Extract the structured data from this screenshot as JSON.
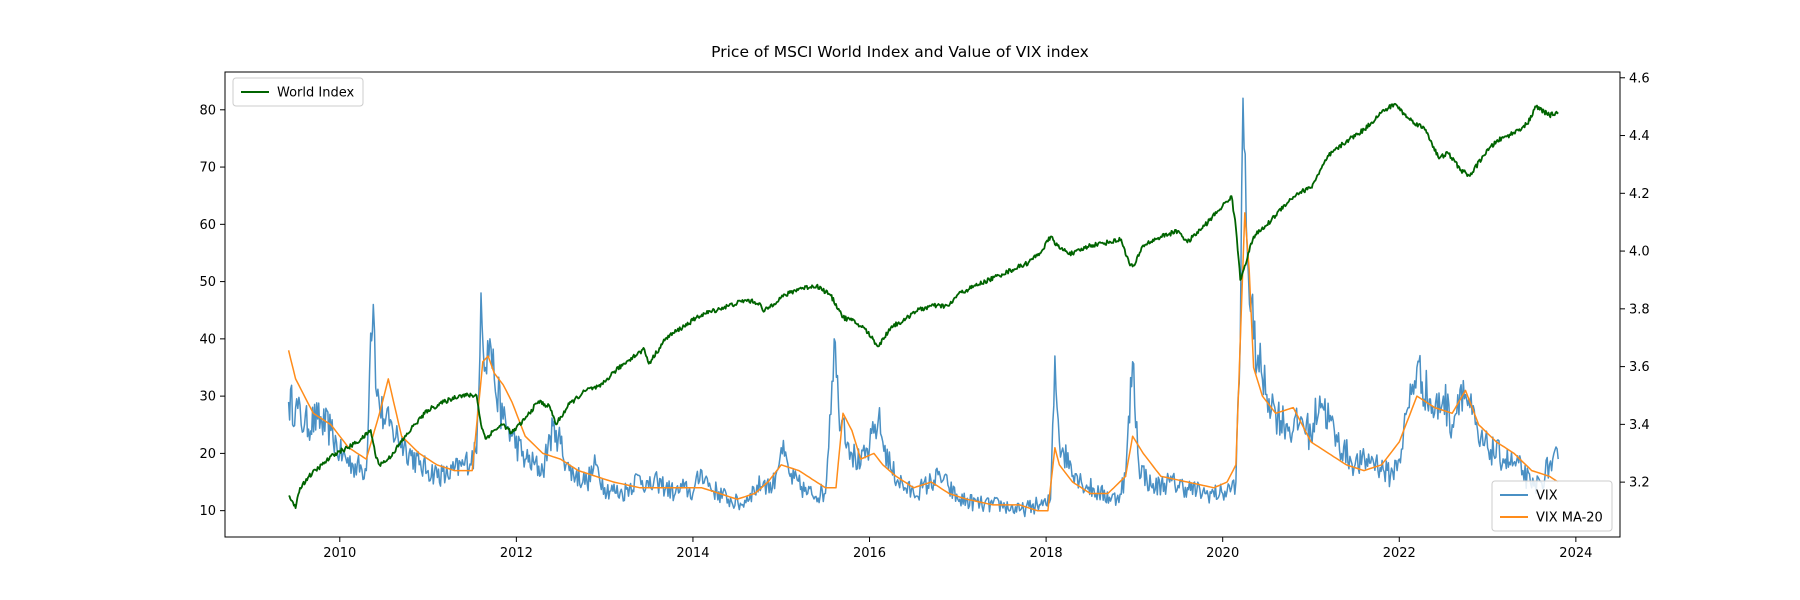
{
  "chart_data": {
    "type": "line",
    "title": "Price of MSCI World Index and Value of VIX index",
    "xlabel": "",
    "ylabel_left": "",
    "ylabel_right": "",
    "x_range": [
      2008.7,
      2024.5
    ],
    "x_ticks": [
      2010,
      2012,
      2014,
      2016,
      2018,
      2020,
      2022,
      2024
    ],
    "x_tick_labels": [
      "2010",
      "2012",
      "2014",
      "2016",
      "2018",
      "2020",
      "2022",
      "2024"
    ],
    "ylim_left": [
      5.4,
      86.6
    ],
    "y_ticks_left": [
      10,
      20,
      30,
      40,
      50,
      60,
      70,
      80
    ],
    "y_tick_labels_left": [
      "10",
      "20",
      "30",
      "40",
      "50",
      "60",
      "70",
      "80"
    ],
    "ylim_right": [
      3.01,
      4.62
    ],
    "y_ticks_right": [
      3.2,
      3.4,
      3.6,
      3.8,
      4.0,
      4.2,
      4.4,
      4.6
    ],
    "y_tick_labels_right": [
      "3.2",
      "3.4",
      "3.6",
      "3.8",
      "4.0",
      "4.2",
      "4.4",
      "4.6"
    ],
    "grid": false,
    "legends": [
      {
        "placement": "upper-left",
        "entries": [
          {
            "name": "World Index",
            "color": "#006400"
          }
        ]
      },
      {
        "placement": "lower-right",
        "entries": [
          {
            "name": "VIX",
            "color": "#4a90c4"
          },
          {
            "name": "VIX MA-20",
            "color": "#ff8c1a"
          }
        ]
      }
    ],
    "series": [
      {
        "name": "VIX",
        "axis": "left",
        "color": "#4a90c4",
        "x": [
          2009.42,
          2009.5,
          2009.6,
          2009.75,
          2009.9,
          2010.0,
          2010.15,
          2010.3,
          2010.35,
          2010.38,
          2010.42,
          2010.5,
          2010.6,
          2010.75,
          2010.9,
          2011.0,
          2011.2,
          2011.4,
          2011.55,
          2011.6,
          2011.65,
          2011.7,
          2011.75,
          2011.85,
          2011.95,
          2012.1,
          2012.3,
          2012.38,
          2012.45,
          2012.6,
          2012.8,
          2012.9,
          2013.0,
          2013.2,
          2013.4,
          2013.5,
          2013.6,
          2013.8,
          2013.9,
          2014.0,
          2014.1,
          2014.2,
          2014.4,
          2014.55,
          2014.65,
          2014.8,
          2014.9,
          2015.0,
          2015.1,
          2015.3,
          2015.5,
          2015.6,
          2015.65,
          2015.7,
          2015.8,
          2015.9,
          2016.0,
          2016.1,
          2016.15,
          2016.25,
          2016.4,
          2016.5,
          2016.6,
          2016.8,
          2016.9,
          2017.0,
          2017.3,
          2017.5,
          2017.7,
          2017.9,
          2018.0,
          2018.05,
          2018.1,
          2018.15,
          2018.2,
          2018.4,
          2018.6,
          2018.8,
          2018.9,
          2018.98,
          2019.05,
          2019.2,
          2019.4,
          2019.6,
          2019.8,
          2020.0,
          2020.1,
          2020.15,
          2020.2,
          2020.23,
          2020.28,
          2020.35,
          2020.45,
          2020.6,
          2020.8,
          2020.9,
          2021.0,
          2021.1,
          2021.3,
          2021.5,
          2021.7,
          2021.9,
          2022.0,
          2022.1,
          2022.2,
          2022.4,
          2022.5,
          2022.6,
          2022.7,
          2022.8,
          2022.9,
          2023.0,
          2023.2,
          2023.4,
          2023.5,
          2023.6,
          2023.7,
          2023.8
        ],
        "y": [
          29,
          28,
          25,
          26,
          24,
          20,
          18,
          17,
          41,
          46,
          30,
          26,
          24,
          21,
          18,
          17,
          16,
          18,
          20,
          48,
          35,
          40,
          33,
          26,
          23,
          19,
          17,
          23,
          24,
          17,
          15,
          18,
          14,
          13,
          16,
          14,
          15,
          13,
          14,
          13,
          17,
          14,
          12,
          11,
          13,
          15,
          14,
          21,
          16,
          13,
          13,
          40,
          28,
          26,
          20,
          18,
          21,
          26,
          22,
          17,
          14,
          13,
          14,
          16,
          14,
          12,
          11,
          11,
          10,
          11,
          11,
          12,
          37,
          22,
          20,
          15,
          13,
          12,
          16,
          36,
          18,
          14,
          15,
          14,
          13,
          13,
          14,
          15,
          40,
          82,
          55,
          40,
          33,
          27,
          24,
          26,
          23,
          30,
          22,
          18,
          19,
          16,
          19,
          28,
          35,
          27,
          30,
          25,
          32,
          28,
          22,
          21,
          19,
          17,
          14,
          15,
          18,
          19
        ]
      },
      {
        "name": "VIX MA-20",
        "axis": "left",
        "color": "#ff8c1a",
        "x": [
          2009.42,
          2009.5,
          2009.7,
          2009.9,
          2010.1,
          2010.3,
          2010.45,
          2010.55,
          2010.7,
          2010.9,
          2011.1,
          2011.3,
          2011.5,
          2011.62,
          2011.68,
          2011.75,
          2011.85,
          2011.95,
          2012.1,
          2012.3,
          2012.5,
          2012.7,
          2012.9,
          2013.1,
          2013.4,
          2013.6,
          2013.9,
          2014.1,
          2014.3,
          2014.5,
          2014.7,
          2014.85,
          2015.0,
          2015.2,
          2015.5,
          2015.62,
          2015.7,
          2015.8,
          2015.9,
          2016.05,
          2016.15,
          2016.3,
          2016.5,
          2016.7,
          2016.9,
          2017.1,
          2017.4,
          2017.7,
          2017.9,
          2018.02,
          2018.1,
          2018.15,
          2018.3,
          2018.5,
          2018.7,
          2018.9,
          2018.98,
          2019.1,
          2019.3,
          2019.6,
          2019.9,
          2020.05,
          2020.15,
          2020.25,
          2020.3,
          2020.35,
          2020.45,
          2020.6,
          2020.8,
          2021.0,
          2021.2,
          2021.4,
          2021.6,
          2021.8,
          2022.0,
          2022.2,
          2022.4,
          2022.6,
          2022.75,
          2022.9,
          2023.1,
          2023.3,
          2023.5,
          2023.7,
          2023.8
        ],
        "y": [
          38,
          33,
          27,
          25,
          21,
          19,
          27,
          33,
          23,
          20,
          18,
          17,
          17,
          36,
          37,
          34,
          32,
          29,
          23,
          20,
          19,
          17,
          16,
          15,
          14,
          14,
          14,
          14,
          13,
          12,
          13,
          15,
          18,
          17,
          14,
          14,
          27,
          24,
          19,
          20,
          18,
          16,
          14,
          15,
          13,
          12,
          11,
          11,
          10,
          10,
          21,
          18,
          15,
          13,
          13,
          16,
          23,
          20,
          16,
          15,
          14,
          15,
          18,
          62,
          52,
          35,
          30,
          27,
          28,
          22,
          20,
          18,
          17,
          18,
          22,
          30,
          28,
          27,
          31,
          25,
          22,
          20,
          17,
          16,
          15
        ]
      },
      {
        "name": "World Index",
        "axis": "right",
        "color": "#006400",
        "x": [
          2009.42,
          2009.47,
          2009.5,
          2009.55,
          2009.65,
          2009.8,
          2009.95,
          2010.1,
          2010.25,
          2010.35,
          2010.4,
          2010.45,
          2010.55,
          2010.7,
          2010.85,
          2011.0,
          2011.2,
          2011.35,
          2011.55,
          2011.6,
          2011.65,
          2011.75,
          2011.85,
          2011.95,
          2012.1,
          2012.25,
          2012.38,
          2012.45,
          2012.6,
          2012.8,
          2012.95,
          2013.1,
          2013.3,
          2013.45,
          2013.5,
          2013.7,
          2013.9,
          2014.0,
          2014.1,
          2014.3,
          2014.5,
          2014.6,
          2014.75,
          2014.8,
          2015.0,
          2015.2,
          2015.4,
          2015.55,
          2015.65,
          2015.7,
          2015.8,
          2015.95,
          2016.1,
          2016.25,
          2016.4,
          2016.5,
          2016.7,
          2016.9,
          2017.0,
          2017.2,
          2017.5,
          2017.8,
          2017.95,
          2018.05,
          2018.15,
          2018.3,
          2018.5,
          2018.7,
          2018.85,
          2018.95,
          2019.0,
          2019.1,
          2019.3,
          2019.5,
          2019.6,
          2019.8,
          2019.95,
          2020.1,
          2020.15,
          2020.2,
          2020.25,
          2020.35,
          2020.5,
          2020.7,
          2020.85,
          2021.0,
          2021.2,
          2021.4,
          2021.6,
          2021.8,
          2021.95,
          2022.1,
          2022.3,
          2022.45,
          2022.55,
          2022.7,
          2022.8,
          2022.95,
          2023.1,
          2023.3,
          2023.45,
          2023.55,
          2023.7,
          2023.8
        ],
        "y": [
          3.15,
          3.13,
          3.11,
          3.18,
          3.22,
          3.26,
          3.3,
          3.32,
          3.35,
          3.38,
          3.3,
          3.26,
          3.28,
          3.34,
          3.4,
          3.45,
          3.48,
          3.5,
          3.5,
          3.4,
          3.35,
          3.38,
          3.4,
          3.37,
          3.42,
          3.48,
          3.46,
          3.4,
          3.47,
          3.52,
          3.53,
          3.58,
          3.63,
          3.66,
          3.61,
          3.7,
          3.74,
          3.76,
          3.78,
          3.8,
          3.82,
          3.83,
          3.82,
          3.79,
          3.84,
          3.87,
          3.88,
          3.85,
          3.8,
          3.77,
          3.76,
          3.73,
          3.67,
          3.74,
          3.76,
          3.79,
          3.81,
          3.81,
          3.85,
          3.88,
          3.92,
          3.96,
          4.0,
          4.05,
          4.01,
          3.99,
          4.02,
          4.03,
          4.04,
          3.95,
          3.95,
          4.02,
          4.05,
          4.07,
          4.03,
          4.09,
          4.14,
          4.19,
          4.08,
          3.9,
          3.95,
          4.05,
          4.09,
          4.16,
          4.2,
          4.22,
          4.33,
          4.38,
          4.42,
          4.48,
          4.51,
          4.46,
          4.42,
          4.32,
          4.34,
          4.28,
          4.26,
          4.33,
          4.38,
          4.41,
          4.44,
          4.5,
          4.47,
          4.48
        ]
      }
    ]
  }
}
